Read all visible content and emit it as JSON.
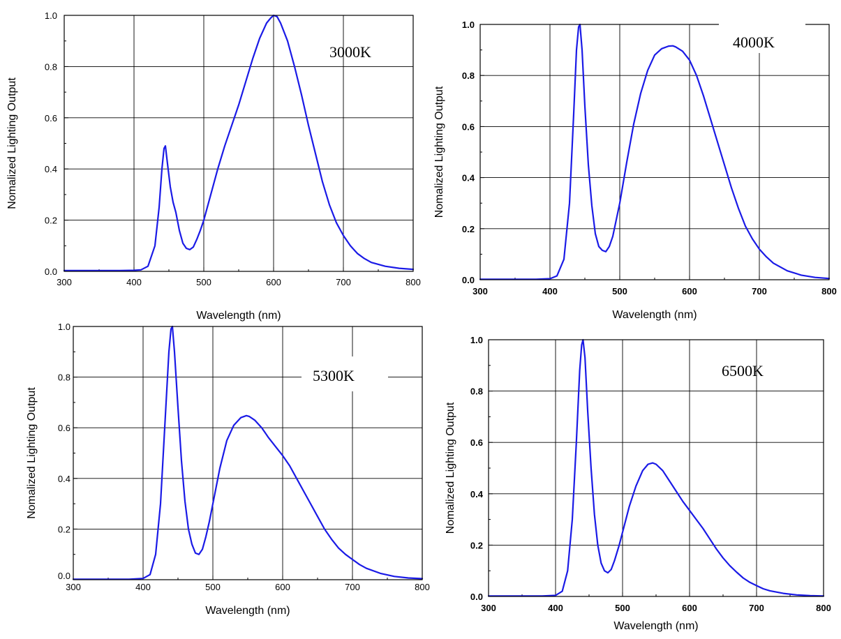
{
  "colors": {
    "curve": "#1a1ae6",
    "grid": "#000000",
    "background": "#ffffff"
  },
  "chart_data": [
    {
      "type": "line",
      "title": "",
      "annotation": "3000K",
      "xlabel": "Wavelength (nm)",
      "ylabel": "Nomalized Lighting Output",
      "xlim": [
        300,
        800
      ],
      "ylim": [
        0,
        1.0
      ],
      "xticks": [
        "300",
        "400",
        "500",
        "600",
        "700",
        "800"
      ],
      "yticks": [
        "0.0",
        "0.2",
        "0.4",
        "0.6",
        "0.8",
        "1.0"
      ],
      "grid": true,
      "series": [
        {
          "x": [
            300,
            380,
            400,
            410,
            420,
            430,
            436,
            440,
            443,
            445,
            448,
            452,
            456,
            460,
            465,
            470,
            475,
            480,
            485,
            490,
            495,
            500,
            510,
            520,
            530,
            540,
            550,
            560,
            570,
            580,
            590,
            596,
            600,
            605,
            610,
            620,
            630,
            640,
            650,
            660,
            670,
            680,
            690,
            700,
            710,
            720,
            730,
            740,
            760,
            780,
            800
          ],
          "y": [
            0.003,
            0.003,
            0.004,
            0.006,
            0.02,
            0.1,
            0.25,
            0.4,
            0.48,
            0.49,
            0.42,
            0.33,
            0.27,
            0.23,
            0.16,
            0.11,
            0.09,
            0.085,
            0.095,
            0.125,
            0.16,
            0.2,
            0.3,
            0.4,
            0.49,
            0.57,
            0.65,
            0.74,
            0.83,
            0.91,
            0.97,
            0.99,
            1.0,
            0.995,
            0.97,
            0.9,
            0.8,
            0.69,
            0.57,
            0.46,
            0.35,
            0.26,
            0.19,
            0.14,
            0.1,
            0.07,
            0.05,
            0.035,
            0.02,
            0.012,
            0.008
          ]
        }
      ]
    },
    {
      "type": "line",
      "title": "",
      "annotation": "4000K",
      "xlabel": "Wavelength (nm)",
      "ylabel": "Nomalized Lighting Output",
      "xlim": [
        300,
        800
      ],
      "ylim": [
        0,
        1.0
      ],
      "xticks": [
        "300",
        "400",
        "500",
        "600",
        "700",
        "800"
      ],
      "yticks": [
        "0.0",
        "0.2",
        "0.4",
        "0.6",
        "0.8",
        "1.0"
      ],
      "grid": true,
      "series": [
        {
          "x": [
            300,
            380,
            400,
            410,
            420,
            428,
            434,
            438,
            441,
            443,
            446,
            450,
            455,
            460,
            465,
            470,
            475,
            480,
            485,
            490,
            500,
            510,
            520,
            530,
            540,
            550,
            560,
            570,
            576,
            580,
            590,
            600,
            610,
            620,
            630,
            640,
            650,
            660,
            670,
            680,
            690,
            700,
            710,
            720,
            740,
            760,
            780,
            800
          ],
          "y": [
            0.002,
            0.002,
            0.004,
            0.015,
            0.08,
            0.3,
            0.65,
            0.9,
            0.99,
            1.0,
            0.9,
            0.68,
            0.45,
            0.29,
            0.18,
            0.13,
            0.115,
            0.11,
            0.13,
            0.17,
            0.3,
            0.46,
            0.61,
            0.73,
            0.82,
            0.88,
            0.905,
            0.915,
            0.916,
            0.912,
            0.895,
            0.86,
            0.8,
            0.72,
            0.63,
            0.54,
            0.45,
            0.36,
            0.28,
            0.21,
            0.16,
            0.12,
            0.09,
            0.065,
            0.035,
            0.018,
            0.009,
            0.005
          ]
        }
      ]
    },
    {
      "type": "line",
      "title": "",
      "annotation": "5300K",
      "xlabel": "Wavelength (nm)",
      "ylabel": "Nomalized Lighting Output",
      "xlim": [
        300,
        800
      ],
      "ylim": [
        0,
        1.0
      ],
      "xticks": [
        "300",
        "400",
        "500",
        "600",
        "700",
        "800"
      ],
      "yticks": [
        "0.0",
        "0.2",
        "0.4",
        "0.6",
        "0.8",
        "1.0"
      ],
      "grid": true,
      "series": [
        {
          "x": [
            300,
            380,
            400,
            410,
            418,
            425,
            432,
            437,
            440,
            442,
            445,
            450,
            455,
            460,
            465,
            470,
            475,
            480,
            485,
            490,
            495,
            500,
            510,
            520,
            530,
            540,
            548,
            552,
            560,
            570,
            580,
            590,
            600,
            610,
            620,
            630,
            640,
            650,
            660,
            670,
            680,
            690,
            700,
            710,
            720,
            740,
            760,
            780,
            800
          ],
          "y": [
            0.002,
            0.002,
            0.005,
            0.02,
            0.1,
            0.3,
            0.65,
            0.9,
            0.99,
            1.0,
            0.9,
            0.68,
            0.47,
            0.31,
            0.2,
            0.14,
            0.105,
            0.1,
            0.12,
            0.17,
            0.23,
            0.3,
            0.44,
            0.55,
            0.61,
            0.64,
            0.648,
            0.645,
            0.63,
            0.6,
            0.56,
            0.525,
            0.49,
            0.45,
            0.4,
            0.35,
            0.3,
            0.25,
            0.2,
            0.16,
            0.125,
            0.1,
            0.08,
            0.06,
            0.045,
            0.025,
            0.013,
            0.007,
            0.004
          ]
        }
      ]
    },
    {
      "type": "line",
      "title": "",
      "annotation": "6500K",
      "xlabel": "Wavelength (nm)",
      "ylabel": "Nomalized Lighting Output",
      "xlim": [
        300,
        800
      ],
      "ylim": [
        0,
        1.0
      ],
      "xticks": [
        "300",
        "400",
        "500",
        "600",
        "700",
        "800"
      ],
      "yticks": [
        "0.0",
        "0.2",
        "0.4",
        "0.6",
        "0.8",
        "1.0"
      ],
      "grid": true,
      "series": [
        {
          "x": [
            300,
            380,
            400,
            410,
            418,
            425,
            431,
            436,
            439,
            441,
            444,
            448,
            453,
            458,
            463,
            468,
            473,
            478,
            483,
            488,
            495,
            500,
            510,
            520,
            530,
            538,
            545,
            550,
            560,
            570,
            580,
            590,
            600,
            610,
            620,
            630,
            640,
            650,
            660,
            670,
            680,
            690,
            700,
            710,
            720,
            740,
            760,
            780,
            800
          ],
          "y": [
            0.002,
            0.002,
            0.004,
            0.02,
            0.1,
            0.3,
            0.6,
            0.88,
            0.98,
            1.0,
            0.93,
            0.72,
            0.5,
            0.32,
            0.2,
            0.13,
            0.1,
            0.092,
            0.105,
            0.14,
            0.2,
            0.25,
            0.35,
            0.43,
            0.49,
            0.515,
            0.52,
            0.515,
            0.49,
            0.45,
            0.41,
            0.37,
            0.335,
            0.3,
            0.265,
            0.225,
            0.185,
            0.15,
            0.12,
            0.095,
            0.072,
            0.055,
            0.042,
            0.03,
            0.022,
            0.012,
            0.006,
            0.003,
            0.002
          ]
        }
      ]
    }
  ]
}
